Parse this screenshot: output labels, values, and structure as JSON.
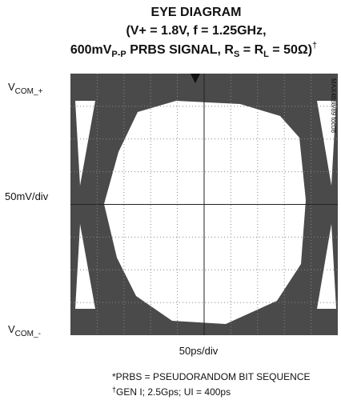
{
  "header": {
    "title_line1": "EYE DIAGRAM",
    "title_line2": "(V+ = 1.8V, f = 1.25GHz,",
    "title_line3": [
      "600mV",
      "P-P",
      " PRBS SIGNAL, R",
      "S",
      " = R",
      "L",
      " = 50Ω)",
      "†"
    ]
  },
  "axis": {
    "top_label": [
      "V",
      "COM_+"
    ],
    "vertical_scale": "50mV/div",
    "bottom_label": [
      "V",
      "COM_-"
    ],
    "horizontal_scale": "50ps/div"
  },
  "figure_id": "MAX4888/89 toc08",
  "footnotes": {
    "note1": "*PRBS = PSEUDORANDOM BIT SEQUENCE",
    "note2": [
      "†",
      "GEN I; 2.5Gps; UI = 400ps"
    ]
  }
}
